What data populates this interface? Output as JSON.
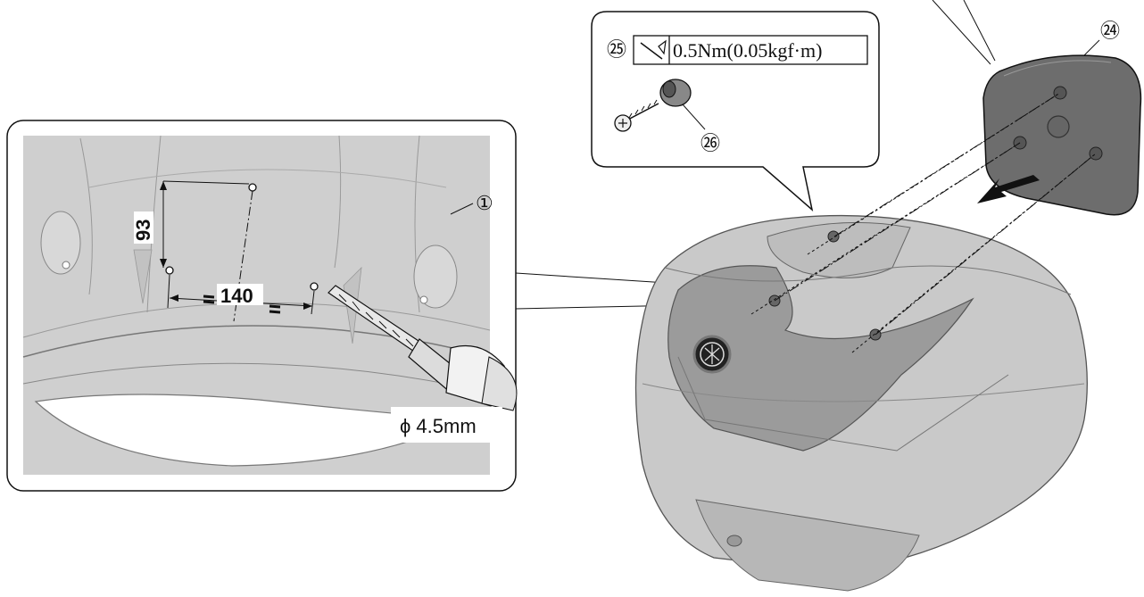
{
  "callouts": {
    "screw_number": "㉕",
    "washer_number": "㉖",
    "cover_number": "㉔",
    "case_number": "①"
  },
  "torque": {
    "text": "0.5Nm(0.05kgf·m)",
    "icon": "torque-wrench-icon"
  },
  "dimensions": {
    "vertical": "93",
    "horizontal": "140",
    "drill_diameter": "ϕ 4.5mm"
  },
  "colors": {
    "case_gray": "#c9c9c9",
    "panel_dark": "#9b9b9b",
    "cover_dark": "#6d6d6d",
    "line": "#111111"
  }
}
